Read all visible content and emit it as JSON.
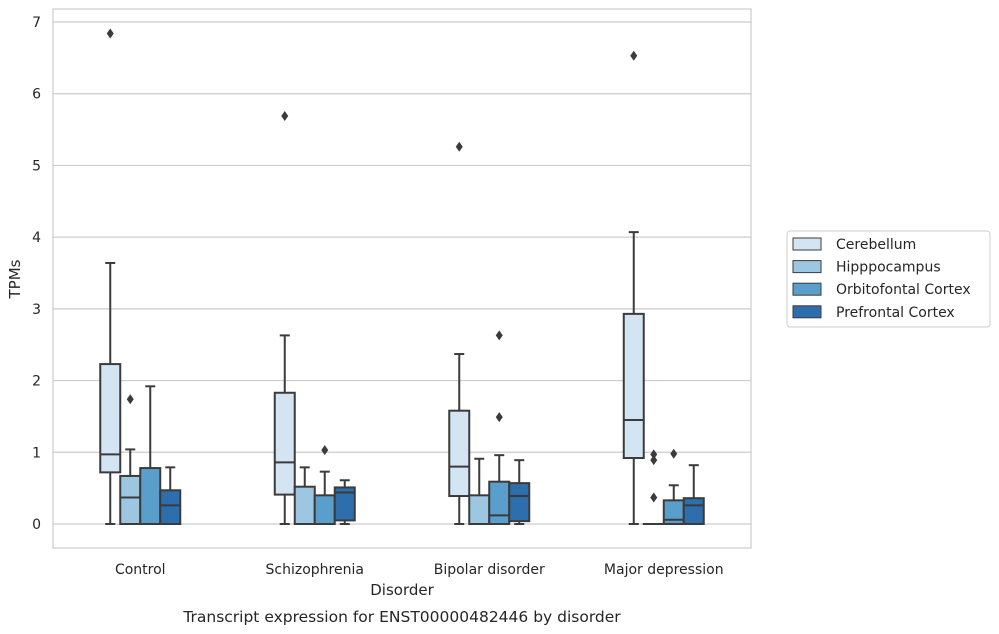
{
  "caption": "Transcript expression for ENST00000482446 by disorder",
  "chart_data": {
    "type": "box",
    "xlabel": "Disorder",
    "ylabel": "TPMs",
    "ylim": [
      -0.33,
      7.2
    ],
    "yticks": [
      0,
      1,
      2,
      3,
      4,
      5,
      6,
      7
    ],
    "grid": "horizontal",
    "legend_position": "right",
    "categories": [
      "Control",
      "Schizophrenia",
      "Bipolar disorder",
      "Major depression"
    ],
    "series": [
      {
        "name": "Cerebellum",
        "color": "#d3e4f3",
        "boxes": [
          {
            "whislo": 0,
            "q1": 0.72,
            "med": 0.97,
            "q3": 2.23,
            "whishi": 3.64,
            "fliers": [
              6.84
            ]
          },
          {
            "whislo": 0,
            "q1": 0.41,
            "med": 0.86,
            "q3": 1.83,
            "whishi": 2.63,
            "fliers": [
              5.69
            ]
          },
          {
            "whislo": 0,
            "q1": 0.39,
            "med": 0.8,
            "q3": 1.58,
            "whishi": 2.37,
            "fliers": [
              5.26
            ]
          },
          {
            "whislo": 0,
            "q1": 0.92,
            "med": 1.45,
            "q3": 2.93,
            "whishi": 4.07,
            "fliers": [
              6.53
            ]
          }
        ]
      },
      {
        "name": "Hipppocampus",
        "color": "#9dc7e1",
        "boxes": [
          {
            "whislo": 0,
            "q1": 0,
            "med": 0.37,
            "q3": 0.67,
            "whishi": 1.04,
            "fliers": [
              1.74
            ]
          },
          {
            "whislo": 0,
            "q1": 0,
            "med": 0,
            "q3": 0.52,
            "whishi": 0.79,
            "fliers": []
          },
          {
            "whislo": 0,
            "q1": 0,
            "med": 0,
            "q3": 0.4,
            "whishi": 0.91,
            "fliers": []
          },
          {
            "whislo": 0,
            "q1": 0,
            "med": 0,
            "q3": 0,
            "whishi": 0,
            "fliers": [
              0.37,
              0.89,
              0.97
            ]
          }
        ]
      },
      {
        "name": "Orbitofontal Cortex",
        "color": "#5a9ecc",
        "boxes": [
          {
            "whislo": 0,
            "q1": 0,
            "med": 0,
            "q3": 0.78,
            "whishi": 1.92,
            "fliers": []
          },
          {
            "whislo": 0,
            "q1": 0,
            "med": 0,
            "q3": 0.4,
            "whishi": 0.73,
            "fliers": [
              1.03
            ]
          },
          {
            "whislo": 0,
            "q1": 0,
            "med": 0.12,
            "q3": 0.59,
            "whishi": 0.96,
            "fliers": [
              1.49,
              2.63
            ]
          },
          {
            "whislo": 0,
            "q1": 0,
            "med": 0.06,
            "q3": 0.33,
            "whishi": 0.54,
            "fliers": [
              0.98
            ]
          }
        ]
      },
      {
        "name": "Prefrontal Cortex",
        "color": "#2c6fac",
        "boxes": [
          {
            "whislo": 0,
            "q1": 0,
            "med": 0.26,
            "q3": 0.47,
            "whishi": 0.79,
            "fliers": []
          },
          {
            "whislo": 0,
            "q1": 0.05,
            "med": 0.44,
            "q3": 0.51,
            "whishi": 0.61,
            "fliers": []
          },
          {
            "whislo": 0,
            "q1": 0.04,
            "med": 0.39,
            "q3": 0.57,
            "whishi": 0.89,
            "fliers": []
          },
          {
            "whislo": 0,
            "q1": 0,
            "med": 0.26,
            "q3": 0.36,
            "whishi": 0.82,
            "fliers": []
          }
        ]
      }
    ]
  }
}
